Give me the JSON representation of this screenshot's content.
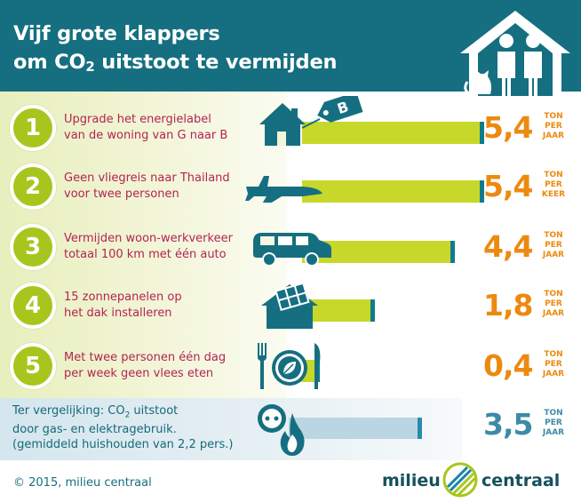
{
  "title": {
    "line1": "Vijf grote klappers",
    "line2_pre": "om CO",
    "line2_sub": "2",
    "line2_post": " uitstoot te vermijden"
  },
  "items": [
    {
      "number": "1",
      "line1": "Upgrade het energielabel",
      "line2": "van de woning van G naar B",
      "value": "5,4",
      "unit1": "TON",
      "unit2": "PER",
      "unit3": "JAAR",
      "icon": "house-energy-label-icon",
      "badge": "B"
    },
    {
      "number": "2",
      "line1": "Geen vliegreis naar Thailand",
      "line2": "voor twee personen",
      "value": "5,4",
      "unit1": "TON",
      "unit2": "PER",
      "unit3": "KEER",
      "icon": "airplane-icon"
    },
    {
      "number": "3",
      "line1": "Vermijden woon-werkverkeer",
      "line2": "totaal 100 km met één auto",
      "value": "4,4",
      "unit1": "TON",
      "unit2": "PER",
      "unit3": "JAAR",
      "icon": "car-icon"
    },
    {
      "number": "4",
      "line1": "15 zonnepanelen op",
      "line2": "het dak installeren",
      "value": "1,8",
      "unit1": "TON",
      "unit2": "PER",
      "unit3": "JAAR",
      "icon": "solar-panel-house-icon"
    },
    {
      "number": "5",
      "line1": "Met twee personen één dag",
      "line2": "per week geen vlees eten",
      "value": "0,4",
      "unit1": "TON",
      "unit2": "PER",
      "unit3": "JAAR",
      "icon": "plate-leaf-icon"
    }
  ],
  "comparison": {
    "line1_pre": "Ter vergelijking: CO",
    "line1_sub": "2",
    "line1_post": " uitstoot",
    "line2": "door gas- en elektragebruik.",
    "line3": "(gemiddeld huishouden van 2,2 pers.)",
    "value": "3,5",
    "unit1": "TON",
    "unit2": "PER",
    "unit3": "JAAR",
    "icons": [
      "power-socket-icon",
      "gas-flame-icon"
    ]
  },
  "footer": {
    "copyright": "© 2015, milieu centraal",
    "brand_left": "milieu",
    "brand_right": "centraal"
  },
  "colors": {
    "header": "#156f80",
    "number_circle": "#a7c61d",
    "label_text": "#b42353",
    "bar": "#c7d82b",
    "value": "#ec8a10",
    "comparison": "#3c8ba6"
  }
}
